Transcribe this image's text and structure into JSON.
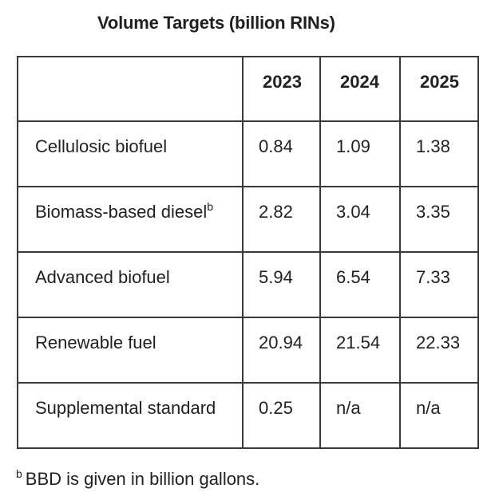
{
  "title": "Volume Targets (billion RINs)",
  "table": {
    "columns": [
      "",
      "2023",
      "2024",
      "2025"
    ],
    "rows": [
      {
        "label": "Cellulosic biofuel",
        "superscript": "",
        "values": [
          "0.84",
          "1.09",
          "1.38"
        ]
      },
      {
        "label": "Biomass-based diesel",
        "superscript": "b",
        "values": [
          "2.82",
          "3.04",
          "3.35"
        ]
      },
      {
        "label": "Advanced biofuel",
        "superscript": "",
        "values": [
          "5.94",
          "6.54",
          "7.33"
        ]
      },
      {
        "label": "Renewable fuel",
        "superscript": "",
        "values": [
          "20.94",
          "21.54",
          "22.33"
        ]
      },
      {
        "label": "Supplemental standard",
        "superscript": "",
        "values": [
          "0.25",
          "n/a",
          "n/a"
        ]
      }
    ]
  },
  "footnote": {
    "marker": "b",
    "text": "BBD is given in billion gallons."
  },
  "colors": {
    "background": "#ffffff",
    "border": "#3a3a3a",
    "text": "#212121"
  }
}
